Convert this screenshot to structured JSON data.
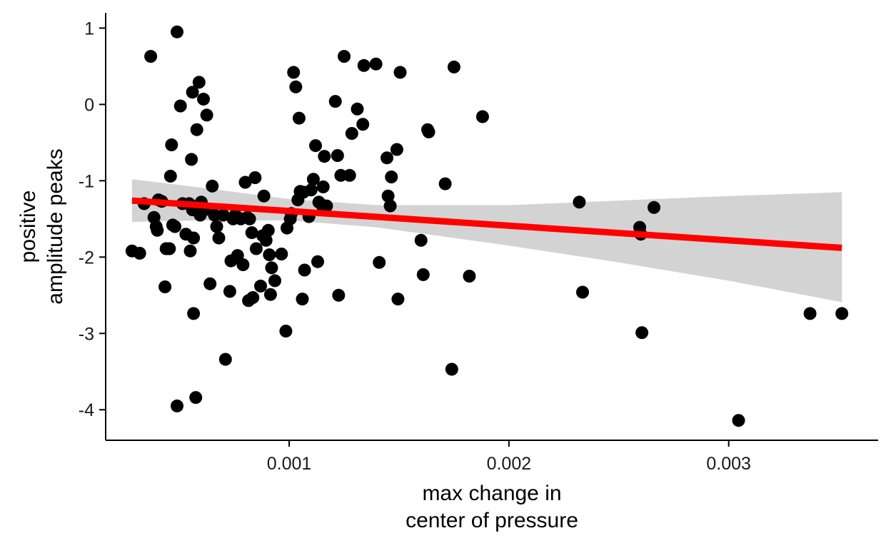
{
  "chart_data": {
    "type": "scatter",
    "xlabel": [
      "max change in",
      "center of pressure"
    ],
    "ylabel": [
      "positive",
      "amplitude peaks"
    ],
    "xlim": [
      0.000165,
      0.00368
    ],
    "ylim": [
      -4.4,
      1.2
    ],
    "x_ticks": [
      0.001,
      0.002,
      0.003
    ],
    "x_tick_labels": [
      "0.001",
      "0.002",
      "0.003"
    ],
    "y_ticks": [
      1,
      0,
      -1,
      -2,
      -3,
      -4
    ],
    "y_tick_labels": [
      "1",
      "0",
      "-1",
      "-2",
      "-3",
      "-4"
    ],
    "grid": false,
    "legend": "none",
    "colors": {
      "points": "#000000",
      "fit_line": "#ff0000",
      "confidence_band": "#d3d3d3"
    },
    "points": [
      [
        0.000285,
        -1.92
      ],
      [
        0.00032,
        -1.95
      ],
      [
        0.00034,
        -1.3
      ],
      [
        0.00037,
        0.63
      ],
      [
        0.000385,
        -1.48
      ],
      [
        0.000395,
        -1.6
      ],
      [
        0.0004,
        -1.65
      ],
      [
        0.000405,
        -1.25
      ],
      [
        0.00042,
        -1.27
      ],
      [
        0.000435,
        -2.39
      ],
      [
        0.00044,
        -1.89
      ],
      [
        0.000455,
        -1.89
      ],
      [
        0.00046,
        -0.94
      ],
      [
        0.000465,
        -0.53
      ],
      [
        0.00047,
        -1.58
      ],
      [
        0.00048,
        -1.6
      ],
      [
        0.00049,
        0.95
      ],
      [
        0.00049,
        -3.95
      ],
      [
        0.000505,
        -0.02
      ],
      [
        0.000515,
        -1.3
      ],
      [
        0.00053,
        -1.7
      ],
      [
        0.000545,
        -1.3
      ],
      [
        0.00055,
        -1.92
      ],
      [
        0.000555,
        -0.72
      ],
      [
        0.00056,
        0.16
      ],
      [
        0.00056,
        -1.38
      ],
      [
        0.000565,
        -1.75
      ],
      [
        0.000565,
        -2.74
      ],
      [
        0.000575,
        -3.84
      ],
      [
        0.00058,
        -0.33
      ],
      [
        0.00059,
        0.29
      ],
      [
        0.000595,
        -1.45
      ],
      [
        0.0006,
        -1.28
      ],
      [
        0.00061,
        0.07
      ],
      [
        0.000615,
        -1.38
      ],
      [
        0.000625,
        -0.14
      ],
      [
        0.00064,
        -2.35
      ],
      [
        0.00065,
        -1.07
      ],
      [
        0.00066,
        -1.45
      ],
      [
        0.00067,
        -1.6
      ],
      [
        0.00068,
        -1.75
      ],
      [
        0.0007,
        -1.45
      ],
      [
        0.00071,
        -3.34
      ],
      [
        0.00073,
        -2.45
      ],
      [
        0.000735,
        -2.05
      ],
      [
        0.000745,
        -1.5
      ],
      [
        0.000755,
        -1.45
      ],
      [
        0.000765,
        -1.98
      ],
      [
        0.00078,
        -1.5
      ],
      [
        0.00079,
        -2.1
      ],
      [
        0.0008,
        -1.02
      ],
      [
        0.00081,
        -1.48
      ],
      [
        0.000815,
        -2.57
      ],
      [
        0.00082,
        -1.5
      ],
      [
        0.00083,
        -1.68
      ],
      [
        0.000835,
        -2.53
      ],
      [
        0.000845,
        -0.96
      ],
      [
        0.00085,
        -1.89
      ],
      [
        0.00087,
        -2.38
      ],
      [
        0.00088,
        -1.72
      ],
      [
        0.000885,
        -1.2
      ],
      [
        0.000895,
        -1.78
      ],
      [
        0.000905,
        -1.65
      ],
      [
        0.00091,
        -1.97
      ],
      [
        0.000915,
        -2.49
      ],
      [
        0.00092,
        -2.14
      ],
      [
        0.000935,
        -2.31
      ],
      [
        0.000965,
        -1.96
      ],
      [
        0.000985,
        -2.97
      ],
      [
        0.00099,
        -1.62
      ],
      [
        0.001005,
        -1.5
      ],
      [
        0.00101,
        -1.43
      ],
      [
        0.00102,
        0.42
      ],
      [
        0.00103,
        0.23
      ],
      [
        0.00104,
        -1.25
      ],
      [
        0.001045,
        -0.18
      ],
      [
        0.00105,
        -1.14
      ],
      [
        0.00106,
        -2.55
      ],
      [
        0.001065,
        -1.15
      ],
      [
        0.00107,
        -2.17
      ],
      [
        0.00109,
        -1.47
      ],
      [
        0.0011,
        -1.12
      ],
      [
        0.00111,
        -0.98
      ],
      [
        0.00112,
        -0.54
      ],
      [
        0.00113,
        -2.06
      ],
      [
        0.001135,
        -1.28
      ],
      [
        0.00115,
        -1.32
      ],
      [
        0.001155,
        -1.08
      ],
      [
        0.00116,
        -0.68
      ],
      [
        0.00117,
        -1.33
      ],
      [
        0.00121,
        0.04
      ],
      [
        0.00122,
        -0.67
      ],
      [
        0.001225,
        -2.5
      ],
      [
        0.001235,
        -0.93
      ],
      [
        0.00125,
        0.63
      ],
      [
        0.001275,
        -0.93
      ],
      [
        0.001285,
        -0.38
      ],
      [
        0.00131,
        -0.06
      ],
      [
        0.001335,
        -0.26
      ],
      [
        0.00134,
        0.51
      ],
      [
        0.001395,
        0.53
      ],
      [
        0.00141,
        -2.07
      ],
      [
        0.001445,
        -0.7
      ],
      [
        0.00145,
        -1.2
      ],
      [
        0.00146,
        -1.33
      ],
      [
        0.001465,
        -0.95
      ],
      [
        0.00149,
        -0.59
      ],
      [
        0.001495,
        -2.55
      ],
      [
        0.001505,
        0.42
      ],
      [
        0.0016,
        -1.78
      ],
      [
        0.00161,
        -2.23
      ],
      [
        0.00163,
        -0.33
      ],
      [
        0.001635,
        -0.36
      ],
      [
        0.00171,
        -1.04
      ],
      [
        0.00174,
        -3.47
      ],
      [
        0.00175,
        0.49
      ],
      [
        0.00182,
        -2.25
      ],
      [
        0.00188,
        -0.16
      ],
      [
        0.00232,
        -1.28
      ],
      [
        0.002335,
        -2.46
      ],
      [
        0.002595,
        -1.61
      ],
      [
        0.0026,
        -1.7
      ],
      [
        0.002605,
        -2.99
      ],
      [
        0.00266,
        -1.35
      ],
      [
        0.003045,
        -4.14
      ],
      [
        0.00337,
        -2.74
      ],
      [
        0.003515,
        -2.74
      ]
    ],
    "fit_line": {
      "x": [
        0.000285,
        0.003515
      ],
      "y": [
        -1.26,
        -1.88
      ]
    },
    "confidence_band": {
      "x": [
        0.000285,
        0.0006,
        0.001,
        0.0014,
        0.002,
        0.0025,
        0.003,
        0.003515
      ],
      "upper": [
        -0.98,
        -1.09,
        -1.24,
        -1.32,
        -1.32,
        -1.26,
        -1.2,
        -1.15
      ],
      "lower": [
        -1.54,
        -1.52,
        -1.52,
        -1.61,
        -1.85,
        -2.07,
        -2.31,
        -2.59
      ]
    }
  }
}
